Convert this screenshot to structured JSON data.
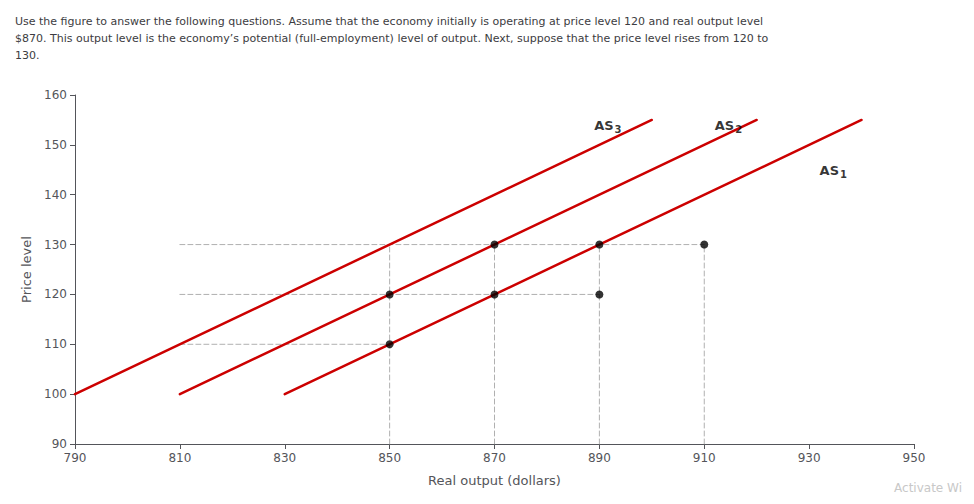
{
  "chart_data": {
    "type": "line",
    "title": "Use the figure to answer the following questions. Assume that the economy initially is operating at price level 120 and real output level\n$870. This output level is the economy’s potential (full-employment) level of output. Next, suppose that the price level rises from 120 to\n130.",
    "xlabel": "Real output (dollars)",
    "ylabel": "Price level",
    "xlim": [
      790,
      950
    ],
    "ylim": [
      90,
      160
    ],
    "xticks": [
      790,
      810,
      830,
      850,
      870,
      890,
      910,
      930,
      950
    ],
    "yticks": [
      90,
      100,
      110,
      120,
      130,
      140,
      150,
      160
    ],
    "grid": false,
    "series": [
      {
        "type": "line",
        "color": "#cc0000",
        "line_style": "solid",
        "x": [
          830,
          940
        ],
        "values": [
          100,
          155
        ],
        "label": "AS",
        "sub": "1",
        "label_x": 932,
        "label_y": 143
      },
      {
        "type": "line",
        "color": "#cc0000",
        "line_style": "solid",
        "x": [
          810,
          920
        ],
        "values": [
          100,
          155
        ],
        "label": "AS",
        "sub": "2",
        "label_x": 912,
        "label_y": 152
      },
      {
        "type": "line",
        "color": "#cc0000",
        "line_style": "solid",
        "x": [
          790,
          900
        ],
        "values": [
          100,
          155
        ],
        "label": "AS",
        "sub": "3",
        "label_x": 889,
        "label_y": 152
      },
      {
        "type": "line",
        "color": "#b0b0b0",
        "line_style": "dashed",
        "x": [
          810,
          850
        ],
        "values": [
          110,
          110
        ]
      },
      {
        "type": "line",
        "color": "#b0b0b0",
        "line_style": "dashed",
        "x": [
          810,
          890
        ],
        "values": [
          120,
          120
        ]
      },
      {
        "type": "line",
        "color": "#b0b0b0",
        "line_style": "dashed",
        "x": [
          810,
          910
        ],
        "values": [
          130,
          130
        ]
      },
      {
        "type": "line",
        "color": "#b0b0b0",
        "line_style": "dashed",
        "x": [
          850,
          850
        ],
        "values": [
          90,
          130
        ]
      },
      {
        "type": "line",
        "color": "#b0b0b0",
        "line_style": "dashed",
        "x": [
          870,
          870
        ],
        "values": [
          90,
          130
        ]
      },
      {
        "type": "line",
        "color": "#b0b0b0",
        "line_style": "dashed",
        "x": [
          890,
          890
        ],
        "values": [
          90,
          130
        ]
      },
      {
        "type": "line",
        "color": "#b0b0b0",
        "line_style": "dashed",
        "x": [
          910,
          910
        ],
        "values": [
          90,
          130
        ]
      },
      {
        "type": "scatter",
        "color": "#000000",
        "marker": "circle",
        "x": [
          850,
          850,
          870,
          870,
          890,
          890,
          910
        ],
        "values": [
          110,
          120,
          120,
          130,
          120,
          130,
          130
        ]
      }
    ],
    "annotation": {
      "text": "Activate Wi",
      "color": "#c8c8c8"
    }
  }
}
